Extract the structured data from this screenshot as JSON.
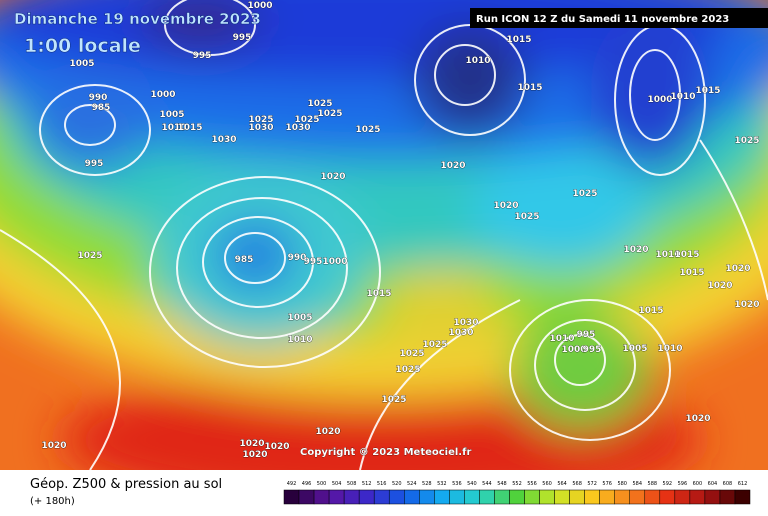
{
  "title": "Dimanche 19 novembre 2023",
  "time": "1:00 locale",
  "run_info": "Run ICON 12 Z du Samedi 11 novembre 2023",
  "copyright": "Copyright © 2023 Meteociel.fr",
  "footer": {
    "title": "Géop. Z500 & pression au sol",
    "lead": "(+ 180h)"
  },
  "colorbar": {
    "labels": [
      492,
      496,
      500,
      504,
      508,
      512,
      516,
      520,
      524,
      528,
      532,
      536,
      540,
      544,
      548,
      552,
      556,
      560,
      564,
      568,
      572,
      576,
      580,
      584,
      588,
      592,
      596,
      600,
      604,
      608,
      612
    ]
  },
  "isobar_labels": [
    "1000",
    "995",
    "995",
    "1005",
    "990",
    "985",
    "1000",
    "1005",
    "1010",
    "1015",
    "995",
    "1030",
    "1025",
    "1030",
    "1025",
    "1030",
    "1025",
    "1025",
    "1025",
    "1020",
    "1015",
    "1010",
    "1015",
    "1000",
    "1010",
    "1015",
    "1025",
    "1020",
    "1020",
    "1025",
    "1025",
    "1025",
    "985",
    "990",
    "995",
    "1000",
    "1015",
    "1005",
    "1010",
    "1020",
    "1010",
    "1015",
    "1015",
    "1020",
    "1020",
    "1020",
    "1015",
    "1030",
    "1030",
    "1025",
    "1025",
    "1025",
    "995",
    "1010",
    "1000",
    "995",
    "1005",
    "1010",
    "1025",
    "1020",
    "1020",
    "1020",
    "1020",
    "1020",
    "1020"
  ]
}
